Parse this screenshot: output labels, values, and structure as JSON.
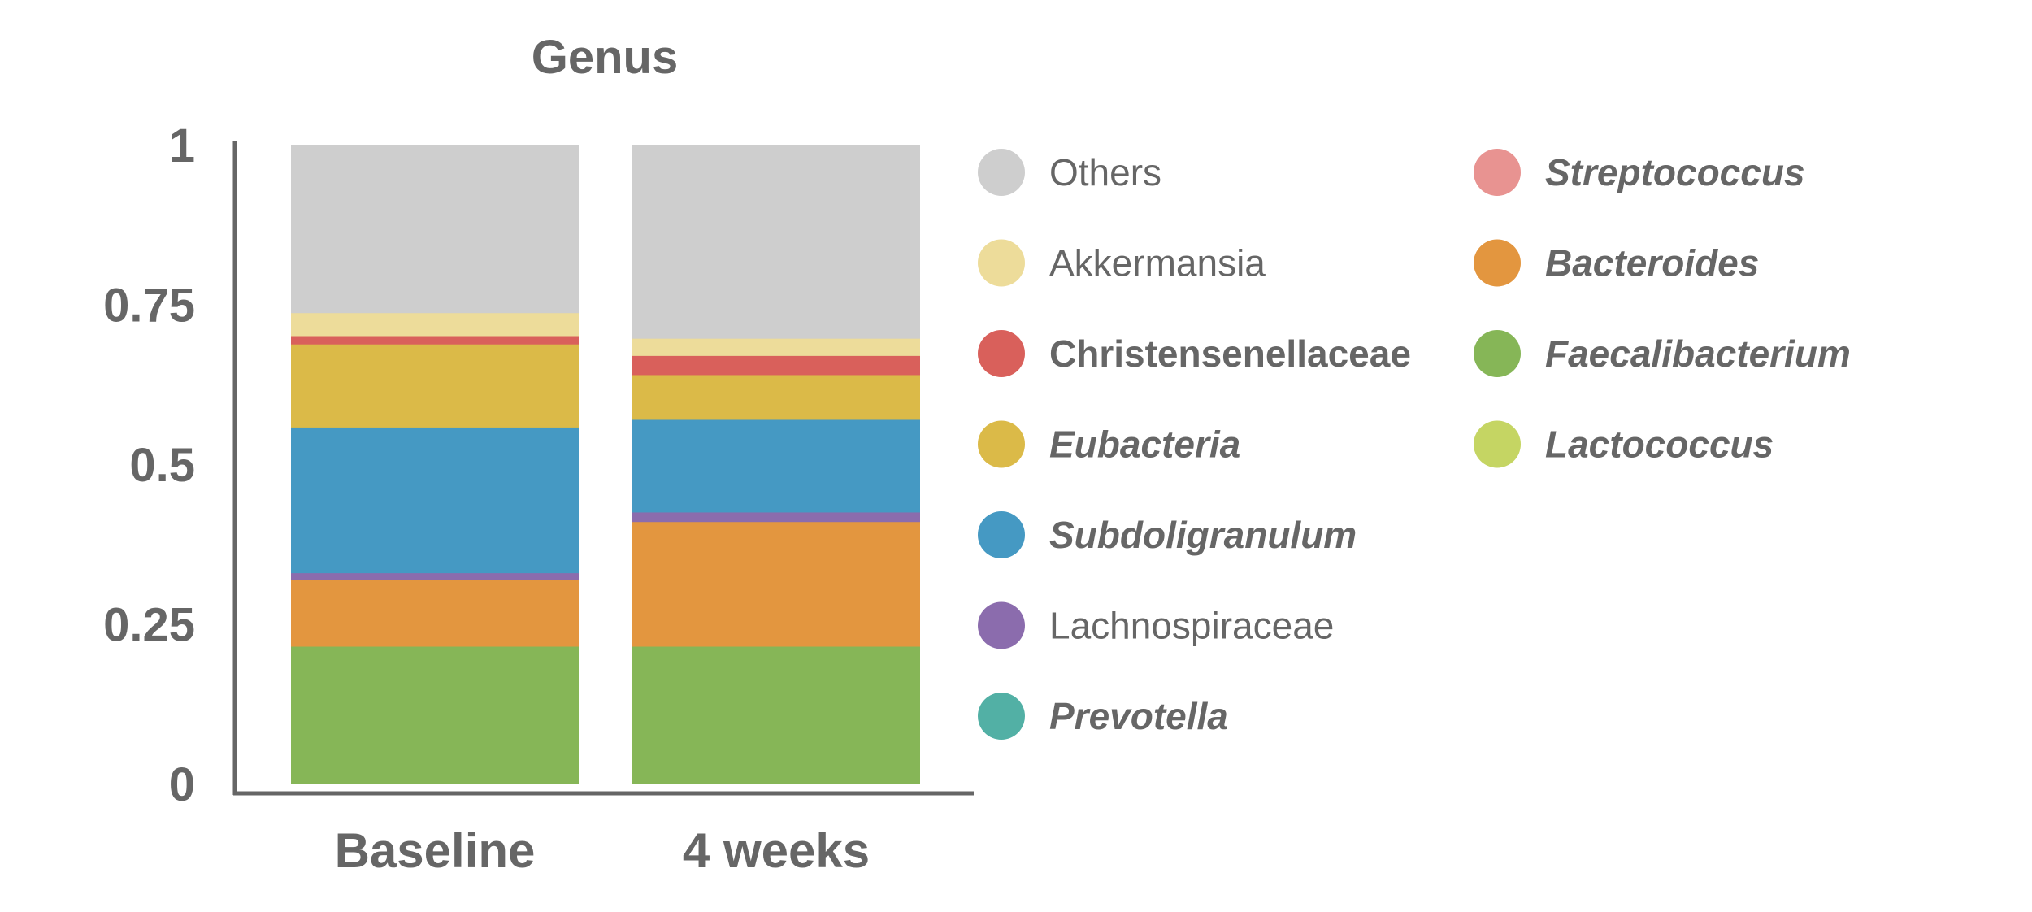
{
  "chart_data": {
    "type": "bar",
    "stacked": true,
    "title": "Genus",
    "xlabel": "",
    "ylabel": "",
    "ylim": [
      0,
      1
    ],
    "yticks": [
      "0",
      "0.25",
      "0.5",
      "0.75",
      "1"
    ],
    "categories": [
      "Baseline",
      "4 weeks"
    ],
    "legend_position": "right",
    "series": [
      {
        "name": "Faecalibacterium",
        "color": "#86b657",
        "style": "italic",
        "values": [
          0.215,
          0.215
        ]
      },
      {
        "name": "Lactococcus",
        "color": "#c5d563",
        "style": "italic",
        "values": [
          0.0,
          0.0
        ]
      },
      {
        "name": "Bacteroides",
        "color": "#e3963f",
        "style": "italic",
        "values": [
          0.105,
          0.195
        ]
      },
      {
        "name": "Lachnospiraceae",
        "color": "#8b6cad",
        "style": "normal",
        "values": [
          0.01,
          0.015
        ]
      },
      {
        "name": "Subdoligranulum",
        "color": "#4599c3",
        "style": "italic",
        "values": [
          0.228,
          0.145
        ]
      },
      {
        "name": "Eubacteria",
        "color": "#dbba48",
        "style": "italic",
        "values": [
          0.13,
          0.07
        ]
      },
      {
        "name": "Christensenellaceae",
        "color": "#d9605b",
        "style": "bold",
        "values": [
          0.013,
          0.03
        ]
      },
      {
        "name": "Akkermansia",
        "color": "#eddc9a",
        "style": "normal",
        "values": [
          0.036,
          0.027
        ]
      },
      {
        "name": "Streptococcus",
        "color": "#e89391",
        "style": "italic",
        "values": [
          0.0,
          0.0
        ]
      },
      {
        "name": "Prevotella",
        "color": "#52b0a5",
        "style": "italic",
        "values": [
          0.0,
          0.0
        ]
      },
      {
        "name": "Others",
        "color": "#cecece",
        "style": "normal",
        "values": [
          0.263,
          0.303
        ]
      }
    ],
    "legend_order": [
      "Others",
      "Akkermansia",
      "Christensenellaceae",
      "Eubacteria",
      "Subdoligranulum",
      "Lachnospiraceae",
      "Prevotella",
      "Streptococcus",
      "Bacteroides",
      "Faecalibacterium",
      "Lactococcus"
    ]
  }
}
